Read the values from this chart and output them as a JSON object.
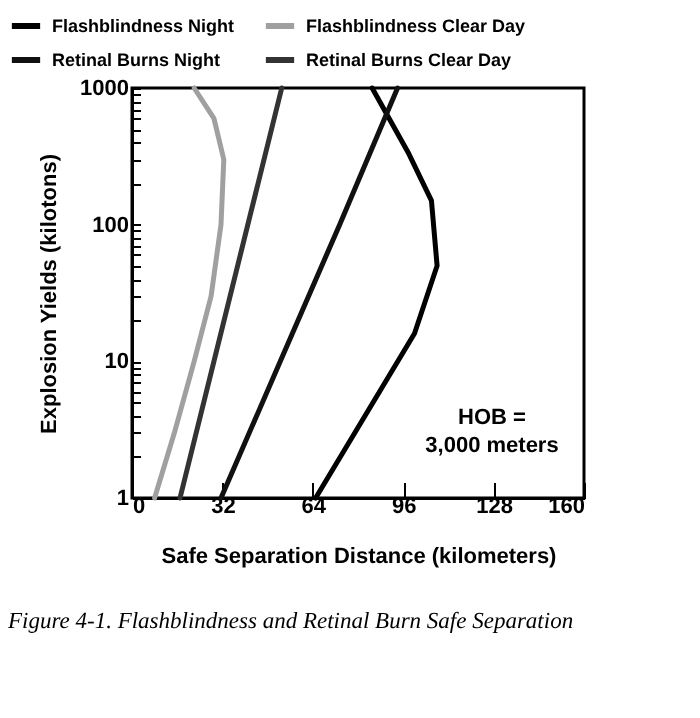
{
  "chart_data": {
    "type": "line",
    "xlabel": "Safe Separation Distance (kilometers)",
    "ylabel": "Explosion Yields (kilotons)",
    "series": [
      {
        "name": "Flashblindness Night",
        "color": "#000000",
        "x": [
          65,
          100,
          108,
          106,
          98,
          85
        ],
        "values": [
          1,
          16,
          50,
          150,
          330,
          1000
        ]
      },
      {
        "name": "Retinal Burns Night",
        "color": "#111111",
        "x": [
          31.5,
          52.5,
          73.5,
          94
        ],
        "values": [
          1,
          10,
          100,
          1000
        ]
      },
      {
        "name": "Flashblindness Clear Day",
        "color": "#a0a0a0",
        "x": [
          8,
          15,
          22,
          28,
          31.5,
          32.5,
          29,
          22
        ],
        "values": [
          1,
          3,
          10,
          30,
          100,
          300,
          600,
          1000
        ]
      },
      {
        "name": "Retinal Burns Clear Day",
        "color": "#333333",
        "x": [
          17,
          29,
          41,
          53
        ],
        "values": [
          1,
          10,
          100,
          1000
        ]
      }
    ],
    "xlim": [
      0,
      160
    ],
    "xticks": [
      0,
      32,
      64,
      96,
      128,
      160
    ],
    "ylim": [
      1,
      1000
    ],
    "yticks": [
      1,
      {
        "value": 2,
        "label": null
      },
      {
        "value": 3,
        "label": null
      },
      {
        "value": 4,
        "label": null
      },
      {
        "value": 5,
        "label": null
      },
      {
        "value": 6,
        "label": null
      },
      {
        "value": 7,
        "label": null
      },
      {
        "value": 8,
        "label": null
      },
      {
        "value": 9,
        "label": null
      },
      10,
      {
        "value": 20,
        "label": null
      },
      {
        "value": 30,
        "label": null
      },
      {
        "value": 40,
        "label": null
      },
      {
        "value": 50,
        "label": null
      },
      {
        "value": 60,
        "label": null
      },
      {
        "value": 70,
        "label": null
      },
      {
        "value": 80,
        "label": null
      },
      {
        "value": 90,
        "label": null
      },
      100,
      {
        "value": 200,
        "label": null
      },
      {
        "value": 300,
        "label": null
      },
      {
        "value": 400,
        "label": null
      },
      {
        "value": 500,
        "label": null
      },
      {
        "value": 600,
        "label": null
      },
      {
        "value": 700,
        "label": null
      },
      {
        "value": 800,
        "label": null
      },
      {
        "value": 900,
        "label": null
      },
      1000
    ],
    "log": true,
    "legend": "top",
    "line_style": "solid",
    "marker": "none",
    "grid": false,
    "annotations": [
      "HOB =\n3,000 meters",
      "Figure 4-1.  Flashblindness and Retinal Burn Safe Separation"
    ]
  }
}
